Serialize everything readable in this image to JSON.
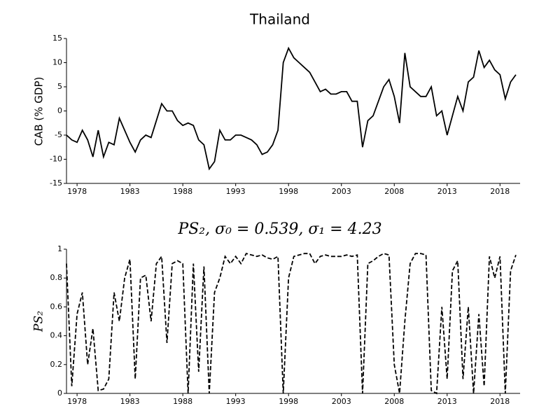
{
  "chart_data": [
    {
      "type": "line",
      "title": "Thailand",
      "y_label": "CAB (% GDP)",
      "color": "#000000",
      "dash": "solid",
      "xlim": [
        1977,
        2019.9
      ],
      "xticks": [
        1978,
        1983,
        1988,
        1993,
        1998,
        2003,
        2008,
        2013,
        2018
      ],
      "ylim": [
        -15,
        15
      ],
      "yticks": [
        -15,
        -10,
        -5,
        0,
        5,
        10,
        15
      ],
      "x": [
        1977,
        1977.5,
        1978,
        1978.5,
        1979,
        1979.5,
        1980,
        1980.5,
        1981,
        1981.5,
        1982,
        1982.5,
        1983,
        1983.5,
        1984,
        1984.5,
        1985,
        1985.5,
        1986,
        1986.5,
        1987,
        1987.5,
        1988,
        1988.5,
        1989,
        1989.5,
        1990,
        1990.5,
        1991,
        1991.5,
        1992,
        1992.5,
        1993,
        1993.5,
        1994,
        1994.5,
        1995,
        1995.5,
        1996,
        1996.5,
        1997,
        1997.5,
        1998,
        1998.5,
        1999,
        1999.5,
        2000,
        2000.5,
        2001,
        2001.5,
        2002,
        2002.5,
        2003,
        2003.5,
        2004,
        2004.5,
        2005,
        2005.5,
        2006,
        2006.5,
        2007,
        2007.5,
        2008,
        2008.5,
        2009,
        2009.5,
        2010,
        2010.5,
        2011,
        2011.5,
        2012,
        2012.5,
        2013,
        2013.5,
        2014,
        2014.5,
        2015,
        2015.5,
        2016,
        2016.5,
        2017,
        2017.5,
        2018,
        2018.5,
        2019,
        2019.5
      ],
      "values": [
        -5,
        -6,
        -6.5,
        -4,
        -6,
        -9.5,
        -4,
        -9.5,
        -6.5,
        -7,
        -1.5,
        -4,
        -6.5,
        -8.5,
        -6,
        -5,
        -5.5,
        -2,
        1.5,
        0,
        0,
        -2,
        -3,
        -2.5,
        -3,
        -6,
        -7,
        -12,
        -10.5,
        -4,
        -6,
        -6,
        -5,
        -5,
        -5.5,
        -6,
        -7,
        -9,
        -8.5,
        -7,
        -4,
        10,
        13,
        11,
        10,
        9,
        8,
        6,
        4,
        4.5,
        3.5,
        3.5,
        4,
        4,
        2,
        2,
        -7.5,
        -2,
        -1,
        2,
        5,
        6.5,
        3,
        -2.5,
        12,
        5,
        4,
        3,
        3,
        5,
        -1,
        0,
        -5,
        -1,
        3,
        0,
        6,
        7,
        12.5,
        9,
        10.5,
        8.5,
        7.5,
        2.5,
        6,
        7.5
      ]
    },
    {
      "type": "line",
      "title": "PS₂, σ₀ = 0.539, σ₁ = 4.23",
      "y_label": "PS₂",
      "color": "#000000",
      "dash": "dashed",
      "xlim": [
        1977,
        2019.9
      ],
      "xticks": [
        1978,
        1983,
        1988,
        1993,
        1998,
        2003,
        2008,
        2013,
        2018
      ],
      "ylim": [
        0,
        1
      ],
      "yticks": [
        0,
        0.2,
        0.4,
        0.6,
        0.8,
        1
      ],
      "x": [
        1977,
        1977.5,
        1978,
        1978.5,
        1979,
        1979.5,
        1980,
        1980.5,
        1981,
        1981.5,
        1982,
        1982.5,
        1983,
        1983.5,
        1984,
        1984.5,
        1985,
        1985.5,
        1986,
        1986.5,
        1987,
        1987.5,
        1988,
        1988.5,
        1989,
        1989.5,
        1990,
        1990.5,
        1991,
        1991.5,
        1992,
        1992.5,
        1993,
        1993.5,
        1994,
        1994.5,
        1995,
        1995.5,
        1996,
        1996.5,
        1997,
        1997.5,
        1998,
        1998.5,
        1999,
        1999.5,
        2000,
        2000.5,
        2001,
        2001.5,
        2002,
        2002.5,
        2003,
        2003.5,
        2004,
        2004.5,
        2005,
        2005.5,
        2006,
        2006.5,
        2007,
        2007.5,
        2008,
        2008.5,
        2009,
        2009.5,
        2010,
        2010.5,
        2011,
        2011.5,
        2012,
        2012.5,
        2013,
        2013.5,
        2014,
        2014.5,
        2015,
        2015.5,
        2016,
        2016.5,
        2017,
        2017.5,
        2018,
        2018.5,
        2019,
        2019.5
      ],
      "values": [
        0.9,
        0.05,
        0.55,
        0.7,
        0.2,
        0.45,
        0.02,
        0.03,
        0.1,
        0.7,
        0.5,
        0.8,
        0.93,
        0.1,
        0.8,
        0.82,
        0.5,
        0.9,
        0.95,
        0.35,
        0.9,
        0.92,
        0.9,
        0,
        0.9,
        0.15,
        0.88,
        0,
        0.7,
        0.8,
        0.95,
        0.9,
        0.95,
        0.9,
        0.97,
        0.96,
        0.95,
        0.96,
        0.94,
        0.93,
        0.95,
        0,
        0.8,
        0.95,
        0.96,
        0.97,
        0.97,
        0.9,
        0.95,
        0.96,
        0.95,
        0.95,
        0.95,
        0.96,
        0.95,
        0.96,
        0,
        0.9,
        0.92,
        0.95,
        0.97,
        0.96,
        0.2,
        0,
        0.5,
        0.9,
        0.97,
        0.97,
        0.96,
        0.02,
        0,
        0.6,
        0.1,
        0.85,
        0.92,
        0.1,
        0.6,
        0,
        0.55,
        0.05,
        0.95,
        0.8,
        0.95,
        0,
        0.85,
        0.96
      ]
    }
  ]
}
